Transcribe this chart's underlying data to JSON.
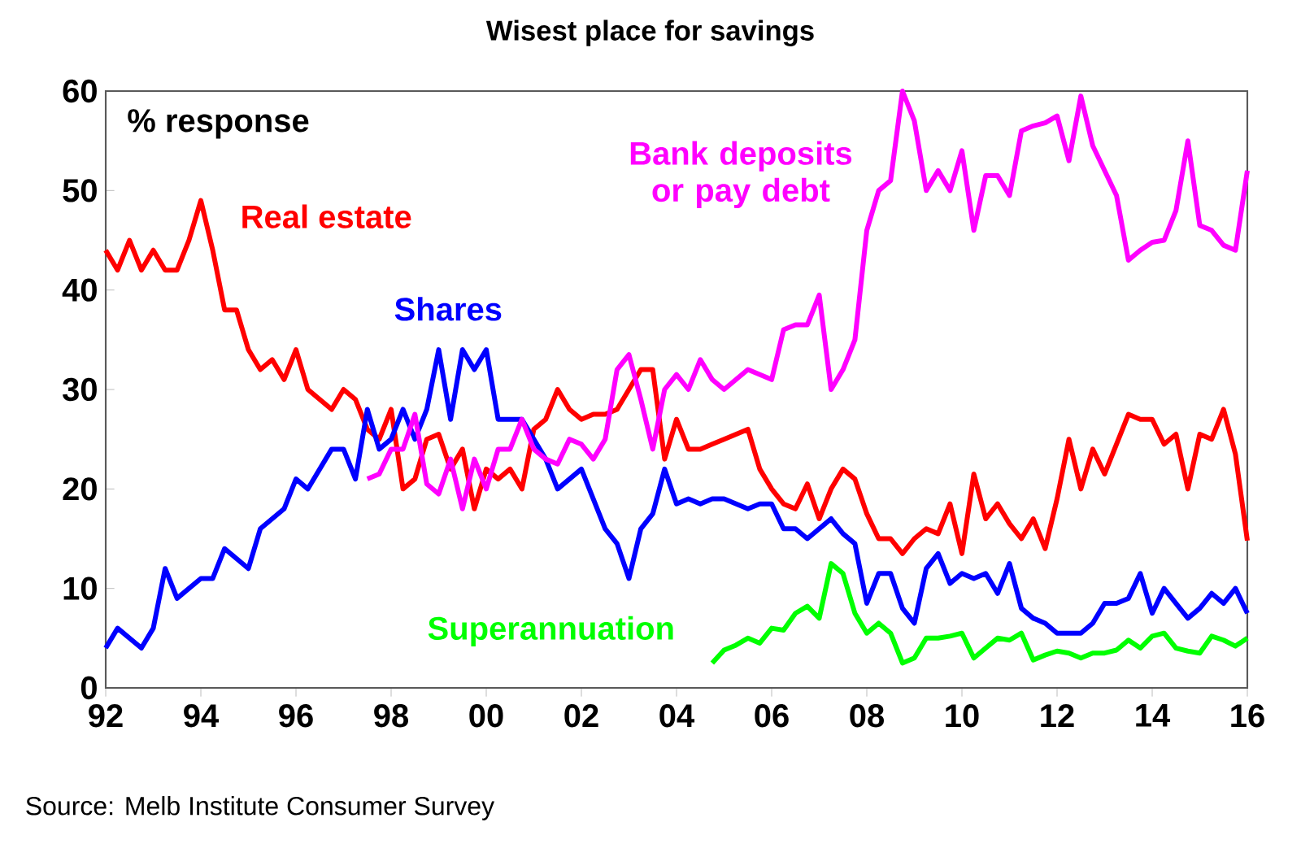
{
  "chart_data": {
    "type": "line",
    "title": "Wisest place for savings",
    "xlim": [
      1992,
      2016
    ],
    "ylim": [
      0,
      60
    ],
    "xticks": [
      {
        "value": 1992,
        "label": "92"
      },
      {
        "value": 1994,
        "label": "94"
      },
      {
        "value": 1996,
        "label": "96"
      },
      {
        "value": 1998,
        "label": "98"
      },
      {
        "value": 2000,
        "label": "00"
      },
      {
        "value": 2002,
        "label": "02"
      },
      {
        "value": 2004,
        "label": "04"
      },
      {
        "value": 2006,
        "label": "06"
      },
      {
        "value": 2008,
        "label": "08"
      },
      {
        "value": 2010,
        "label": "10"
      },
      {
        "value": 2012,
        "label": "12"
      },
      {
        "value": 2014,
        "label": "14"
      },
      {
        "value": 2016,
        "label": "16"
      }
    ],
    "yticks": [
      0,
      10,
      20,
      30,
      40,
      50,
      60
    ],
    "grid": false,
    "legend": false,
    "marker": "none",
    "line_style": "solid",
    "annotations": [
      "% response",
      "Source: Melb Institute Consumer Survey"
    ],
    "series": [
      {
        "name": "Real estate",
        "color": "#ff0000",
        "x": [
          1992,
          1992.25,
          1992.5,
          1992.75,
          1993,
          1993.25,
          1993.5,
          1993.75,
          1994,
          1994.25,
          1994.5,
          1994.75,
          1995,
          1995.25,
          1995.5,
          1995.75,
          1996,
          1996.25,
          1996.5,
          1996.75,
          1997,
          1997.25,
          1997.5,
          1997.75,
          1998,
          1998.25,
          1998.5,
          1998.75,
          1999,
          1999.25,
          1999.5,
          1999.75,
          2000,
          2000.25,
          2000.5,
          2000.75,
          2001,
          2001.25,
          2001.5,
          2001.75,
          2002,
          2002.25,
          2002.5,
          2002.75,
          2003,
          2003.25,
          2003.5,
          2003.75,
          2004,
          2004.25,
          2004.5,
          2004.75,
          2005,
          2005.25,
          2005.5,
          2005.75,
          2006,
          2006.25,
          2006.5,
          2006.75,
          2007,
          2007.25,
          2007.5,
          2007.75,
          2008,
          2008.25,
          2008.5,
          2008.75,
          2009,
          2009.25,
          2009.5,
          2009.75,
          2010,
          2010.25,
          2010.5,
          2010.75,
          2011,
          2011.25,
          2011.5,
          2011.75,
          2012,
          2012.25,
          2012.5,
          2012.75,
          2013,
          2013.25,
          2013.5,
          2013.75,
          2014,
          2014.25,
          2014.5,
          2014.75,
          2015,
          2015.25,
          2015.5,
          2015.75,
          2016
        ],
        "values": [
          44,
          42,
          45,
          42,
          44,
          42,
          42,
          45,
          49,
          44,
          38,
          38,
          34,
          32,
          33,
          31,
          34,
          30,
          29,
          28,
          30,
          29,
          26,
          25,
          28,
          20,
          21,
          25,
          25.5,
          22,
          24,
          18,
          22,
          21,
          22,
          20,
          26,
          27,
          30,
          28,
          27,
          27.5,
          27.5,
          28,
          30,
          32,
          32,
          23,
          27,
          24,
          24,
          24.5,
          25,
          25.5,
          26,
          22,
          20,
          18.5,
          18,
          20.5,
          17,
          20,
          22,
          21,
          17.5,
          15,
          15,
          13.5,
          15,
          16,
          15.5,
          18.5,
          13.5,
          21.5,
          17,
          18.5,
          16.5,
          15,
          17,
          14,
          19,
          25,
          20,
          24,
          21.5,
          24.5,
          27.5,
          27,
          27,
          24.5,
          25.5,
          20,
          25.5,
          25,
          28,
          23.5,
          14.8
        ]
      },
      {
        "name": "Shares",
        "color": "#0000ff",
        "x": [
          1992,
          1992.25,
          1992.75,
          1993,
          1993.25,
          1993.5,
          1993.75,
          1994,
          1994.25,
          1994.5,
          1994.75,
          1995,
          1995.25,
          1995.5,
          1995.75,
          1996,
          1996.25,
          1996.75,
          1997,
          1997.25,
          1997.5,
          1997.75,
          1998,
          1998.25,
          1998.5,
          1998.75,
          1999,
          1999.25,
          1999.5,
          1999.75,
          2000,
          2000.25,
          2000.75,
          2001,
          2001.25,
          2001.5,
          2001.75,
          2002,
          2002.25,
          2002.5,
          2002.75,
          2003,
          2003.25,
          2003.5,
          2003.75,
          2004,
          2004.25,
          2004.5,
          2004.75,
          2005,
          2005.25,
          2005.5,
          2005.75,
          2006,
          2006.25,
          2006.5,
          2006.75,
          2007,
          2007.25,
          2007.5,
          2007.75,
          2008,
          2008.25,
          2008.5,
          2008.75,
          2009,
          2009.25,
          2009.5,
          2009.75,
          2010,
          2010.25,
          2010.5,
          2010.75,
          2011,
          2011.25,
          2011.5,
          2011.75,
          2012,
          2012.25,
          2012.5,
          2012.75,
          2013,
          2013.25,
          2013.5,
          2013.75,
          2014,
          2014.25,
          2014.5,
          2014.75,
          2015,
          2015.25,
          2015.5,
          2015.75,
          2016
        ],
        "values": [
          4,
          6,
          4,
          6,
          12,
          9,
          10,
          11,
          11,
          14,
          13,
          12,
          16,
          17,
          18,
          21,
          20,
          24,
          24,
          21,
          28,
          24,
          25,
          28,
          25,
          28,
          34,
          27,
          34,
          32,
          34,
          27,
          27,
          25,
          23,
          20,
          21,
          22,
          19,
          16,
          14.5,
          11,
          16,
          17.5,
          22,
          18.5,
          19,
          18.5,
          19,
          19,
          18.5,
          18,
          18.5,
          18.5,
          16,
          16,
          15,
          16,
          17,
          15.5,
          14.5,
          8.5,
          11.5,
          11.5,
          8,
          6.5,
          12,
          13.5,
          10.5,
          11.5,
          11,
          11.5,
          9.5,
          12.5,
          8,
          7,
          6.5,
          5.5,
          5.5,
          5.5,
          6.5,
          8.5,
          8.5,
          9,
          11.5,
          7.5,
          10,
          8.5,
          7,
          8,
          9.5,
          8.5,
          10,
          7.5
        ]
      },
      {
        "name": "Bank deposits or pay debt",
        "color": "#ff00ff",
        "x": [
          1997.5,
          1997.75,
          1998,
          1998.25,
          1998.5,
          1998.75,
          1999,
          1999.25,
          1999.5,
          1999.75,
          2000,
          2000.25,
          2000.5,
          2000.75,
          2001,
          2001.25,
          2001.5,
          2001.75,
          2002,
          2002.25,
          2002.5,
          2002.75,
          2003,
          2003.25,
          2003.5,
          2003.75,
          2004,
          2004.25,
          2004.5,
          2004.75,
          2005,
          2005.25,
          2005.5,
          2005.75,
          2006,
          2006.25,
          2006.5,
          2006.75,
          2007,
          2007.25,
          2007.5,
          2007.75,
          2008,
          2008.25,
          2008.5,
          2008.75,
          2009,
          2009.25,
          2009.5,
          2009.75,
          2010,
          2010.25,
          2010.5,
          2010.75,
          2011,
          2011.25,
          2011.5,
          2011.75,
          2012,
          2012.25,
          2012.5,
          2012.75,
          2013,
          2013.25,
          2013.5,
          2013.75,
          2014,
          2014.25,
          2014.5,
          2014.75,
          2015,
          2015.25,
          2015.5,
          2015.75,
          2016
        ],
        "values": [
          21,
          21.5,
          24,
          24,
          27.5,
          20.5,
          19.5,
          23,
          18,
          23,
          20,
          24,
          24,
          27,
          24,
          23,
          22.5,
          25,
          24.5,
          23,
          25,
          32,
          33.5,
          29,
          24,
          30,
          31.5,
          30,
          33,
          31,
          30,
          31,
          32,
          31.5,
          31,
          36,
          36.5,
          36.5,
          39.5,
          30,
          32,
          35,
          46,
          50,
          51,
          60,
          57,
          50,
          52,
          50,
          54,
          46,
          51.5,
          51.5,
          49.5,
          56,
          56.5,
          56.8,
          57.5,
          53,
          59.5,
          54.5,
          52,
          49.5,
          43,
          44,
          44.8,
          45,
          48,
          55,
          46.5,
          46,
          44.5,
          44,
          52
        ]
      },
      {
        "name": "Superannuation",
        "color": "#00ff00",
        "x": [
          2004.75,
          2005,
          2005.25,
          2005.5,
          2005.75,
          2006,
          2006.25,
          2006.5,
          2006.75,
          2007,
          2007.25,
          2007.5,
          2007.75,
          2008,
          2008.25,
          2008.5,
          2008.75,
          2009,
          2009.25,
          2009.5,
          2009.75,
          2010,
          2010.25,
          2010.5,
          2010.75,
          2011,
          2011.25,
          2011.5,
          2011.75,
          2012,
          2012.25,
          2012.5,
          2012.75,
          2013,
          2013.25,
          2013.5,
          2013.75,
          2014,
          2014.25,
          2014.5,
          2014.75,
          2015,
          2015.25,
          2015.5,
          2015.75,
          2016
        ],
        "values": [
          2.5,
          3.8,
          4.3,
          5,
          4.5,
          6,
          5.8,
          7.5,
          8.2,
          7,
          12.5,
          11.5,
          7.5,
          5.5,
          6.5,
          5.5,
          2.5,
          3,
          5,
          5,
          5.2,
          5.5,
          3,
          4,
          5,
          4.8,
          5.5,
          2.8,
          3.3,
          3.7,
          3.5,
          3,
          3.5,
          3.5,
          3.8,
          4.8,
          4,
          5.2,
          5.5,
          4,
          3.7,
          3.5,
          5.2,
          4.8,
          4.2,
          5
        ]
      }
    ]
  }
}
